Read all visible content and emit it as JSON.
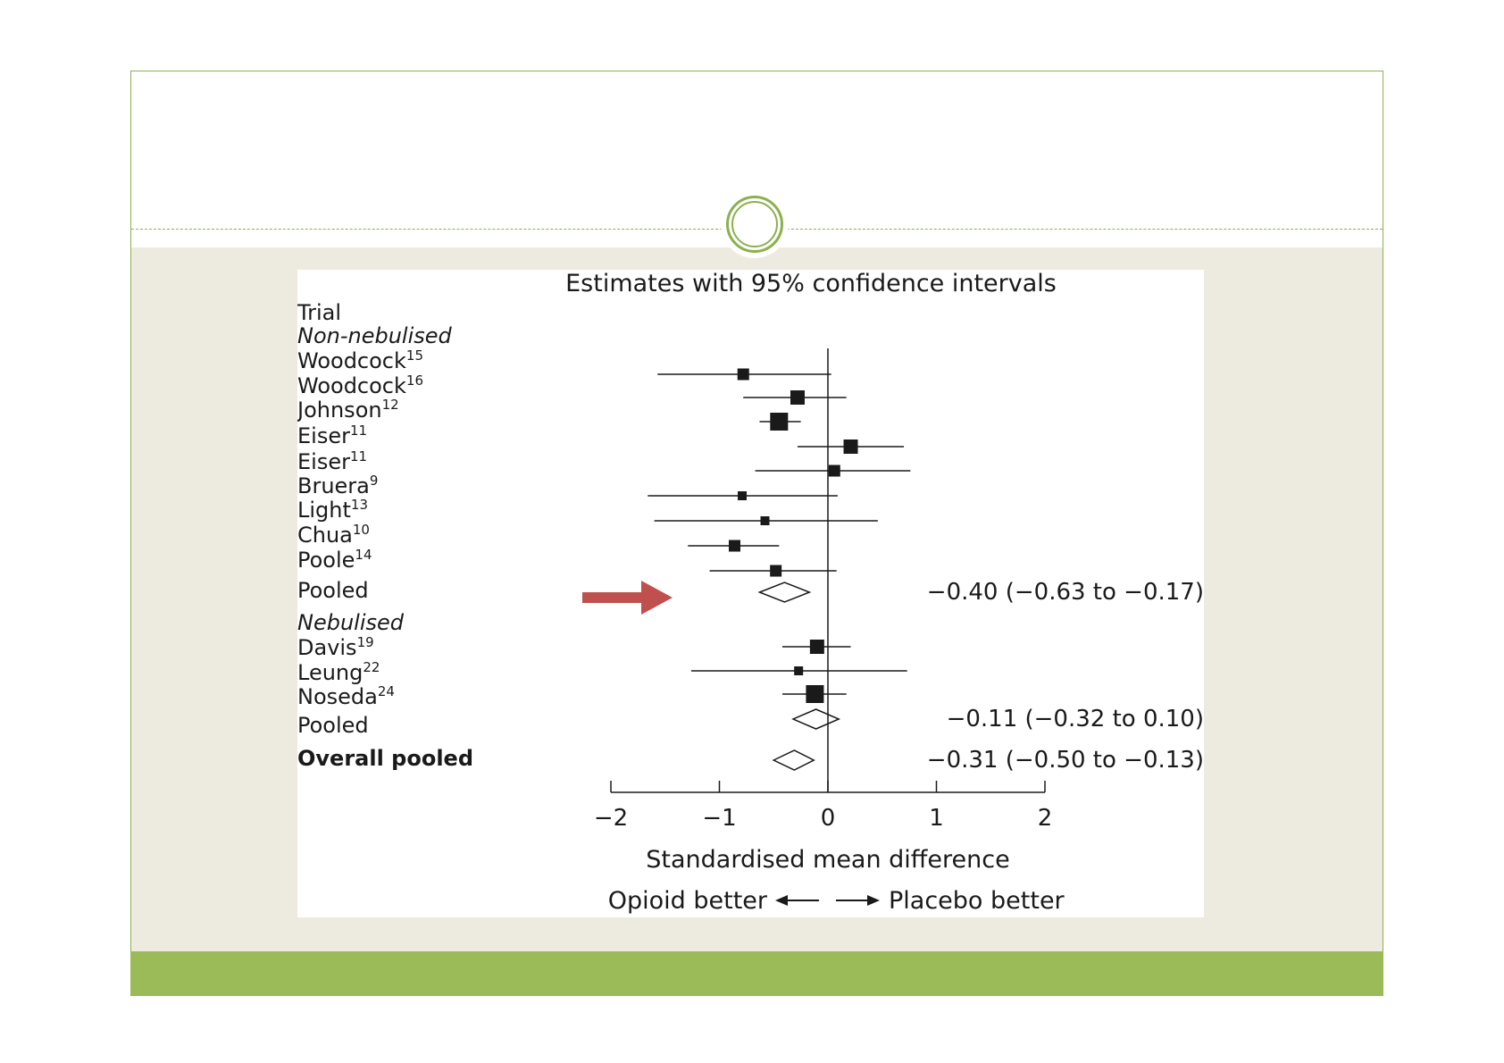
{
  "colors": {
    "frame": "#8db04e",
    "content_bg": "#edebe0",
    "footer": "#9bbb59",
    "arrow": "#c0504d",
    "ink": "#1a1a1a"
  },
  "chart_data": {
    "type": "forest",
    "title": "Estimates with 95% confidence intervals",
    "column_header": "Trial",
    "xlabel": "Standardised mean difference",
    "xlim": [
      -2,
      2
    ],
    "xticks": [
      "−2",
      "−1",
      "0",
      "1",
      "2"
    ],
    "direction_left": "Opioid better",
    "direction_right": "Placebo better",
    "rows": [
      {
        "kind": "group",
        "label": "Non-nebulised"
      },
      {
        "kind": "study",
        "label": "Woodcock",
        "ref": "15",
        "est": -0.78,
        "lo": -1.57,
        "hi": 0.03,
        "weight": 2
      },
      {
        "kind": "study",
        "label": "Woodcock",
        "ref": "16",
        "est": -0.28,
        "lo": -0.78,
        "hi": 0.17,
        "weight": 3
      },
      {
        "kind": "study",
        "label": "Johnson",
        "ref": "12",
        "est": -0.45,
        "lo": -0.63,
        "hi": -0.25,
        "weight": 4
      },
      {
        "kind": "study",
        "label": "Eiser",
        "ref": "11",
        "est": 0.21,
        "lo": -0.28,
        "hi": 0.7,
        "weight": 3
      },
      {
        "kind": "study",
        "label": "Eiser",
        "ref": "11",
        "est": 0.06,
        "lo": -0.67,
        "hi": 0.76,
        "weight": 2
      },
      {
        "kind": "study",
        "label": "Bruera",
        "ref": "9",
        "est": -0.79,
        "lo": -1.66,
        "hi": 0.09,
        "weight": 1
      },
      {
        "kind": "study",
        "label": "Light",
        "ref": "13",
        "est": -0.58,
        "lo": -1.6,
        "hi": 0.46,
        "weight": 1
      },
      {
        "kind": "study",
        "label": "Chua",
        "ref": "10",
        "est": -0.86,
        "lo": -1.29,
        "hi": -0.45,
        "weight": 2
      },
      {
        "kind": "study",
        "label": "Poole",
        "ref": "14",
        "est": -0.48,
        "lo": -1.09,
        "hi": 0.08,
        "weight": 2
      },
      {
        "kind": "pooled",
        "label": "Pooled",
        "est": -0.4,
        "lo": -0.63,
        "hi": -0.17,
        "ci_text": "−0.40 (−0.63 to −0.17)",
        "highlight_arrow": true
      },
      {
        "kind": "group",
        "label": "Nebulised"
      },
      {
        "kind": "study",
        "label": "Davis",
        "ref": "19",
        "est": -0.1,
        "lo": -0.42,
        "hi": 0.21,
        "weight": 3
      },
      {
        "kind": "study",
        "label": "Leung",
        "ref": "22",
        "est": -0.27,
        "lo": -1.26,
        "hi": 0.73,
        "weight": 1
      },
      {
        "kind": "study",
        "label": "Noseda",
        "ref": "24",
        "est": -0.12,
        "lo": -0.42,
        "hi": 0.17,
        "weight": 4
      },
      {
        "kind": "pooled",
        "label": "Pooled",
        "est": -0.11,
        "lo": -0.32,
        "hi": 0.1,
        "ci_text": "−0.11 (−0.32 to 0.10)"
      },
      {
        "kind": "overall",
        "label": "Overall pooled",
        "est": -0.31,
        "lo": -0.5,
        "hi": -0.13,
        "ci_text": "−0.31 (−0.50 to −0.13)"
      }
    ]
  }
}
